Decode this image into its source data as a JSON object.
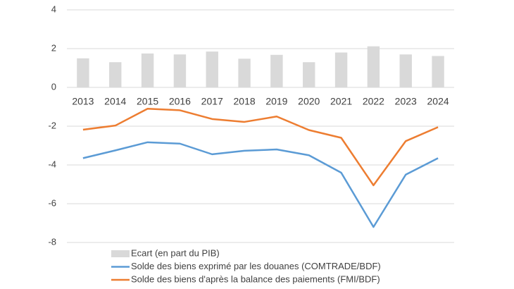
{
  "chart_data": {
    "type": "combo",
    "categories": [
      "2013",
      "2014",
      "2015",
      "2016",
      "2017",
      "2018",
      "2019",
      "2020",
      "2021",
      "2022",
      "2023",
      "2024"
    ],
    "series": [
      {
        "name": "Ecart (en part du PIB)",
        "type": "bar",
        "color": "#d9d9d9",
        "values": [
          1.5,
          1.3,
          1.75,
          1.7,
          1.85,
          1.48,
          1.68,
          1.3,
          1.8,
          2.12,
          1.7,
          1.62
        ]
      },
      {
        "name": "Solde des biens exprimé par les douanes (COMTRADE/BDF)",
        "type": "line",
        "color": "#5b9bd5",
        "values": [
          -3.65,
          -3.25,
          -2.83,
          -2.9,
          -3.45,
          -3.27,
          -3.2,
          -3.5,
          -4.4,
          -7.2,
          -4.5,
          -3.65
        ]
      },
      {
        "name": "Solde des biens d'après la balance des paiements (FMI/BDF)",
        "type": "line",
        "color": "#ed7d31",
        "values": [
          -2.18,
          -1.97,
          -1.1,
          -1.18,
          -1.63,
          -1.78,
          -1.5,
          -2.2,
          -2.6,
          -5.05,
          -2.77,
          -2.05
        ]
      }
    ],
    "ylim": [
      -8,
      4
    ],
    "yticks": [
      -8,
      -6,
      -4,
      -2,
      0,
      2,
      4
    ],
    "grid": true,
    "legend": "bottom"
  }
}
